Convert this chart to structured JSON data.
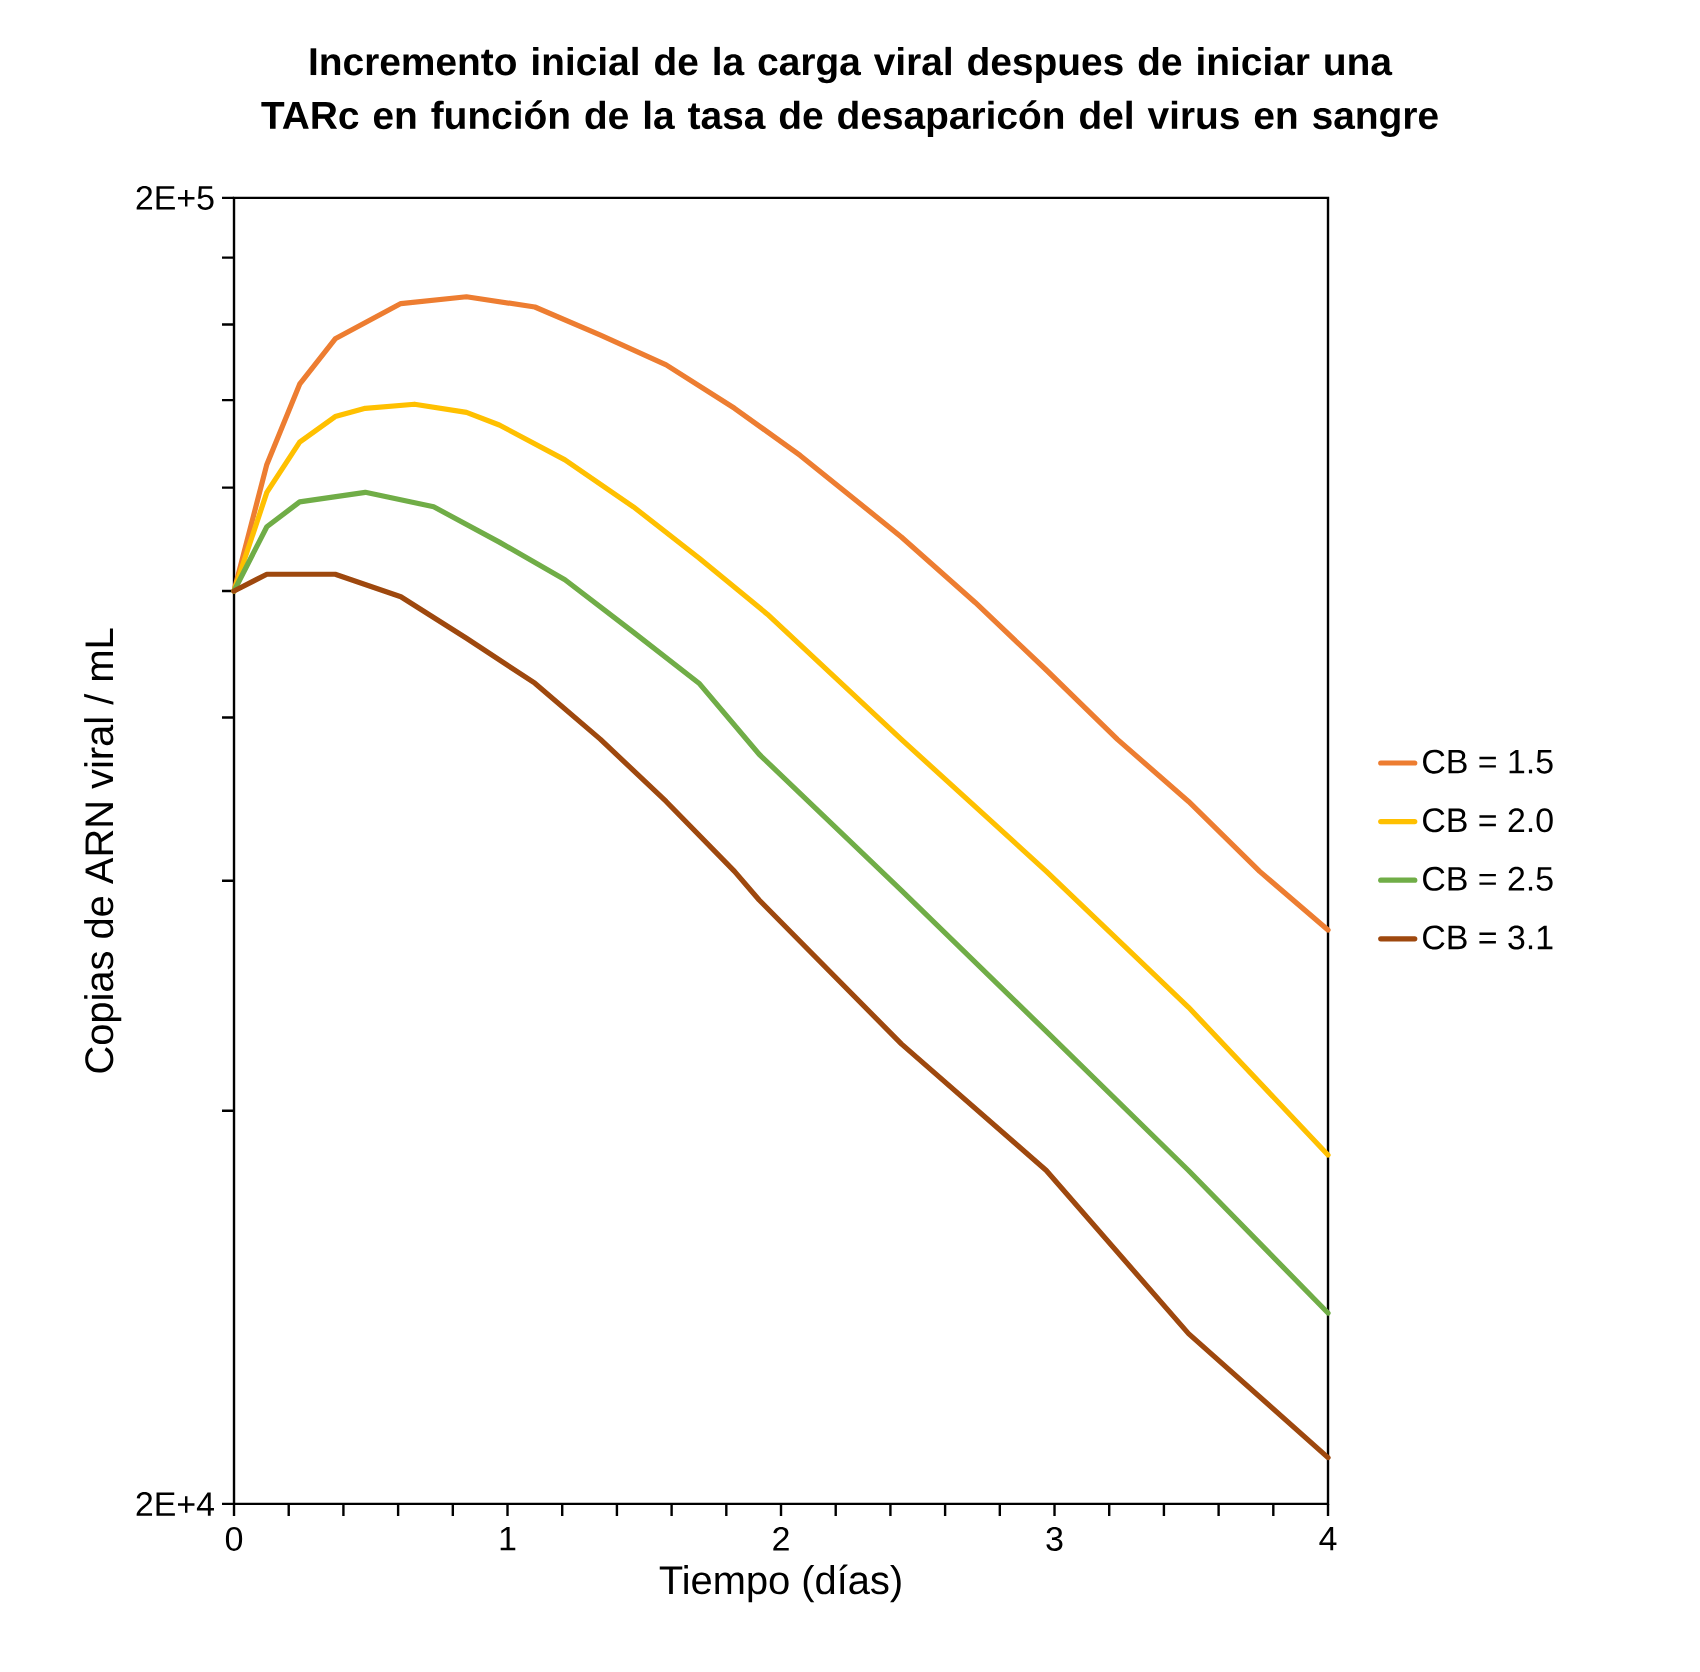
{
  "chart_data": {
    "type": "line",
    "title": "Incremento inicial de la carga viral despues de iniciar una TARc en función de la tasa de desaparicón del virus en sangre",
    "xlabel": "Tiempo (días)",
    "ylabel": "Copias de ARN viral / mL",
    "log": "y",
    "legend": "right",
    "xlim": [
      0,
      4
    ],
    "xticks": [
      0,
      {
        "value": 0.2,
        "label": null
      },
      {
        "value": 0.4,
        "label": null
      },
      {
        "value": 0.6,
        "label": null
      },
      {
        "value": 0.8,
        "label": null
      },
      1,
      {
        "value": 1.2,
        "label": null
      },
      {
        "value": 1.4,
        "label": null
      },
      {
        "value": 1.6,
        "label": null
      },
      {
        "value": 1.8,
        "label": null
      },
      2,
      {
        "value": 2.2,
        "label": null
      },
      {
        "value": 2.4,
        "label": null
      },
      {
        "value": 2.6,
        "label": null
      },
      {
        "value": 2.8,
        "label": null
      },
      3,
      {
        "value": 3.2,
        "label": null
      },
      {
        "value": 3.4,
        "label": null
      },
      {
        "value": 3.6,
        "label": null
      },
      {
        "value": 3.8,
        "label": null
      },
      4
    ],
    "ylim": [
      20000,
      200000
    ],
    "yticks": [
      {
        "value": 20000,
        "label": "2E+4"
      },
      {
        "value": 40000,
        "label": null
      },
      {
        "value": 60000,
        "label": null
      },
      {
        "value": 80000,
        "label": null
      },
      {
        "value": 100000,
        "label": null
      },
      {
        "value": 120000,
        "label": null
      },
      {
        "value": 140000,
        "label": null
      },
      {
        "value": 160000,
        "label": null
      },
      {
        "value": 180000,
        "label": null
      },
      {
        "value": 200000,
        "label": "2E+5"
      }
    ],
    "series": [
      {
        "name": "CB = 1.5",
        "color": "#ed7d31",
        "x": [
          0,
          0.12,
          0.24,
          0.37,
          0.61,
          0.85,
          1.1,
          1.34,
          1.58,
          1.83,
          2.07,
          2.44,
          2.71,
          2.97,
          3.23,
          3.49,
          3.75,
          4
        ],
        "values": [
          100000,
          125000,
          144000,
          156000,
          166000,
          168000,
          165000,
          157000,
          149000,
          138000,
          127000,
          110000,
          98000,
          87000,
          77000,
          69000,
          61000,
          55000
        ]
      },
      {
        "name": "CB = 2.0",
        "color": "#ffc000",
        "x": [
          0,
          0.12,
          0.24,
          0.37,
          0.48,
          0.66,
          0.85,
          0.97,
          1.21,
          1.46,
          1.7,
          1.95,
          2.44,
          2.97,
          3.49,
          4
        ],
        "values": [
          100000,
          119000,
          130000,
          136000,
          138000,
          139000,
          137000,
          134000,
          126000,
          116000,
          106000,
          96000,
          77000,
          61000,
          48000,
          37000
        ]
      },
      {
        "name": "CB = 2.5",
        "color": "#70ad47",
        "x": [
          0,
          0.12,
          0.24,
          0.48,
          0.73,
          0.97,
          1.21,
          1.46,
          1.7,
          1.92,
          2.44,
          2.97,
          3.49,
          4
        ],
        "values": [
          100000,
          112000,
          117000,
          119000,
          116000,
          109000,
          102000,
          93000,
          85000,
          75000,
          59000,
          46000,
          36000,
          28000
        ]
      },
      {
        "name": "CB = 3.1",
        "color": "#9e480e",
        "x": [
          0,
          0.12,
          0.24,
          0.37,
          0.61,
          0.85,
          1.1,
          1.34,
          1.58,
          1.83,
          1.92,
          2.44,
          2.97,
          3.49,
          4
        ],
        "values": [
          100000,
          103000,
          103000,
          103000,
          99000,
          92000,
          85000,
          77000,
          69000,
          61000,
          58000,
          45000,
          36000,
          27000,
          21700
        ]
      }
    ]
  }
}
